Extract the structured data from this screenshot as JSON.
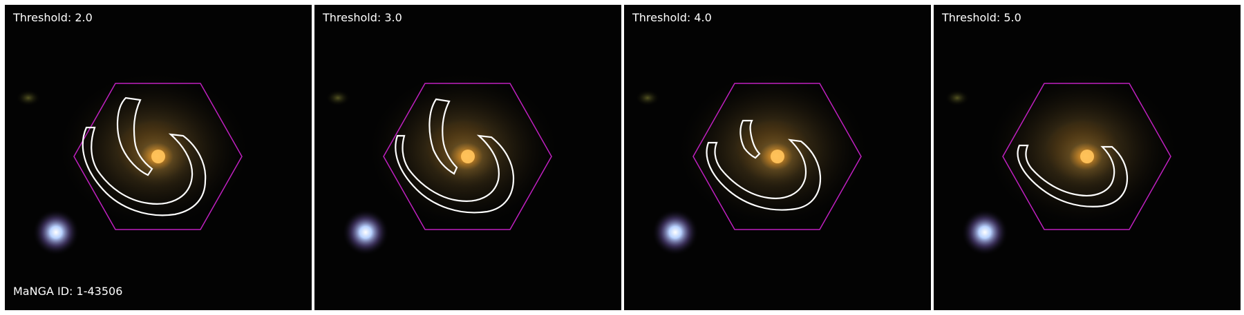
{
  "panels": [
    {
      "threshold_label": "Threshold: 2.0"
    },
    {
      "threshold_label": "Threshold: 3.0"
    },
    {
      "threshold_label": "Threshold: 4.0"
    },
    {
      "threshold_label": "Threshold: 5.0"
    }
  ],
  "manga_id_label": "MaNGA ID: 1-43506",
  "colors": {
    "background": "#000000",
    "hexagon": "#c020c0",
    "contour": "#ffffff",
    "galaxy_core": "#ffb640",
    "star": "#e6f0ff"
  },
  "icons": [
    "galaxy-image",
    "ifu-hexagon-outline",
    "spiral-arm-contour",
    "foreground-star"
  ]
}
